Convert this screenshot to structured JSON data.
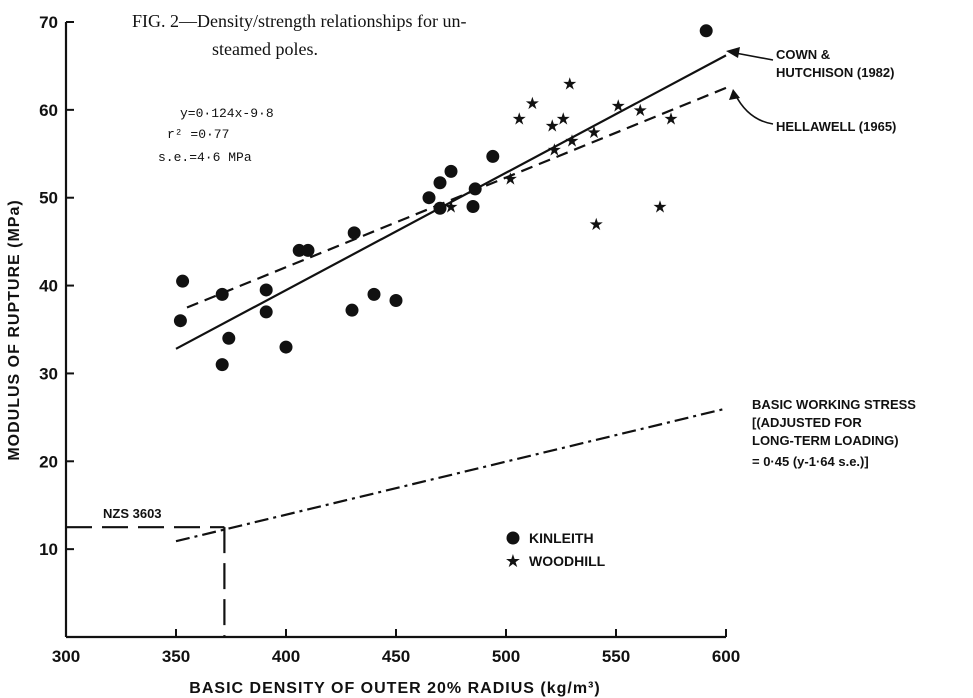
{
  "caption": {
    "line1": "FIG. 2—Density/strength relationships for un-",
    "line2": "steamed poles."
  },
  "chart_data": {
    "type": "scatter",
    "xlabel": "BASIC DENSITY OF OUTER 20% RADIUS (kg/m³)",
    "ylabel": "MODULUS OF RUPTURE (MPa)",
    "xlim": [
      300,
      600
    ],
    "ylim": [
      0,
      70
    ],
    "x_ticks": [
      300,
      350,
      400,
      450,
      500,
      550,
      600
    ],
    "y_ticks": [
      10,
      20,
      30,
      40,
      50,
      60,
      70
    ],
    "grid": false,
    "series": [
      {
        "name": "KINLEITH",
        "marker": "circle",
        "points": [
          [
            352,
            36
          ],
          [
            353,
            40.5
          ],
          [
            371,
            31
          ],
          [
            371,
            39
          ],
          [
            374,
            34
          ],
          [
            391,
            37
          ],
          [
            391,
            39.5
          ],
          [
            400,
            33
          ],
          [
            406,
            44
          ],
          [
            410,
            44
          ],
          [
            430,
            37.2
          ],
          [
            431,
            46
          ],
          [
            440,
            39
          ],
          [
            450,
            38.3
          ],
          [
            465,
            50
          ],
          [
            470,
            48.8
          ],
          [
            470,
            51.7
          ],
          [
            475,
            53
          ],
          [
            485,
            49
          ],
          [
            486,
            51
          ],
          [
            494,
            54.7
          ],
          [
            591,
            69
          ]
        ]
      },
      {
        "name": "WOODHILL",
        "marker": "star",
        "points": [
          [
            475,
            49
          ],
          [
            502,
            52.2
          ],
          [
            506,
            59
          ],
          [
            512,
            60.8
          ],
          [
            521,
            58.2
          ],
          [
            522,
            55.5
          ],
          [
            526,
            59
          ],
          [
            529,
            63
          ],
          [
            530,
            56.5
          ],
          [
            540,
            57.5
          ],
          [
            541,
            47
          ],
          [
            551,
            60.5
          ],
          [
            561,
            60
          ],
          [
            570,
            49
          ],
          [
            575,
            59
          ]
        ]
      }
    ],
    "lines": [
      {
        "label": "COWN & HUTCHISON (1982)",
        "style": "solid",
        "x": [
          350,
          600
        ],
        "y": [
          32.8,
          66.2
        ]
      },
      {
        "label": "HELLAWELL (1965)",
        "style": "dashed",
        "x": [
          355,
          600
        ],
        "y": [
          37.5,
          62.5
        ]
      },
      {
        "label": "BASIC WORKING STRESS",
        "style": "dash-dot",
        "x": [
          350,
          600
        ],
        "y": [
          10.9,
          26
        ]
      },
      {
        "label": "NZS 3603",
        "style": "long-dash",
        "x": [
          300,
          372
        ],
        "y": [
          12.5,
          12.5
        ],
        "drop_to_axis_at_x": 372
      }
    ],
    "annotations": {
      "equation": "y=0·124x-9·8",
      "r2": "r² =0·77",
      "se": "s.e.=4·6  MPa",
      "cown_line1": "COWN &",
      "cown_line2": "HUTCHISON (1982)",
      "hellawell": "HELLAWELL (1965)",
      "bws_line1": "BASIC WORKING STRESS",
      "bws_line2": "[(ADJUSTED FOR",
      "bws_line3": "LONG-TERM LOADING)",
      "bws_line4": "= 0·45 (y-1·64 s.e.)]",
      "nzs": "NZS 3603"
    }
  }
}
